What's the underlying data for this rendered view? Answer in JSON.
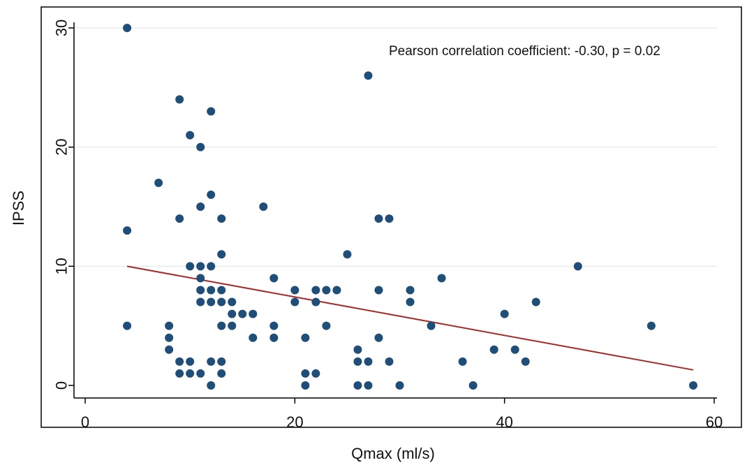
{
  "chart_data": {
    "type": "scatter",
    "title": "",
    "xlabel": "Qmax (ml/s)",
    "ylabel": "IPSS",
    "annotation": "Pearson correlation coefficient: -0.30, p = 0.02",
    "xlim": [
      0,
      60
    ],
    "ylim": [
      0,
      30
    ],
    "xticks": [
      0,
      20,
      40,
      60
    ],
    "yticks": [
      0,
      10,
      20,
      30
    ],
    "grid": "horizontal",
    "legend": "none",
    "colors": {
      "points": "#1f4e79",
      "fit": "#a52a2a",
      "grid": "#e6ebee",
      "frame": "#000000"
    },
    "points": [
      [
        4,
        30
      ],
      [
        4,
        13
      ],
      [
        4,
        5
      ],
      [
        7,
        17
      ],
      [
        8,
        5
      ],
      [
        8,
        4
      ],
      [
        8,
        3
      ],
      [
        9,
        24
      ],
      [
        9,
        14
      ],
      [
        9,
        2
      ],
      [
        9,
        1
      ],
      [
        10,
        21
      ],
      [
        10,
        10
      ],
      [
        10,
        2
      ],
      [
        10,
        1
      ],
      [
        11,
        20
      ],
      [
        11,
        15
      ],
      [
        11,
        10
      ],
      [
        11,
        9
      ],
      [
        11,
        8
      ],
      [
        11,
        7
      ],
      [
        11,
        1
      ],
      [
        12,
        23
      ],
      [
        12,
        16
      ],
      [
        12,
        10
      ],
      [
        12,
        8
      ],
      [
        12,
        7
      ],
      [
        12,
        2
      ],
      [
        12,
        0
      ],
      [
        13,
        14
      ],
      [
        13,
        11
      ],
      [
        13,
        8
      ],
      [
        13,
        7
      ],
      [
        13,
        5
      ],
      [
        13,
        2
      ],
      [
        13,
        1
      ],
      [
        14,
        7
      ],
      [
        14,
        6
      ],
      [
        14,
        5
      ],
      [
        15,
        6
      ],
      [
        16,
        6
      ],
      [
        16,
        4
      ],
      [
        17,
        15
      ],
      [
        18,
        9
      ],
      [
        18,
        5
      ],
      [
        18,
        4
      ],
      [
        20,
        8
      ],
      [
        20,
        7
      ],
      [
        21,
        4
      ],
      [
        21,
        1
      ],
      [
        21,
        0
      ],
      [
        22,
        8
      ],
      [
        22,
        7
      ],
      [
        22,
        1
      ],
      [
        23,
        8
      ],
      [
        23,
        5
      ],
      [
        24,
        8
      ],
      [
        25,
        11
      ],
      [
        26,
        3
      ],
      [
        26,
        2
      ],
      [
        26,
        0
      ],
      [
        27,
        26
      ],
      [
        27,
        2
      ],
      [
        27,
        0
      ],
      [
        28,
        14
      ],
      [
        28,
        8
      ],
      [
        28,
        4
      ],
      [
        29,
        14
      ],
      [
        29,
        2
      ],
      [
        30,
        0
      ],
      [
        31,
        8
      ],
      [
        31,
        7
      ],
      [
        33,
        5
      ],
      [
        34,
        9
      ],
      [
        36,
        2
      ],
      [
        37,
        0
      ],
      [
        39,
        3
      ],
      [
        40,
        6
      ],
      [
        41,
        3
      ],
      [
        42,
        2
      ],
      [
        43,
        7
      ],
      [
        47,
        10
      ],
      [
        54,
        5
      ],
      [
        58,
        0
      ]
    ],
    "fit_line": {
      "x": [
        4,
        58
      ],
      "y": [
        10.0,
        1.3
      ]
    }
  }
}
